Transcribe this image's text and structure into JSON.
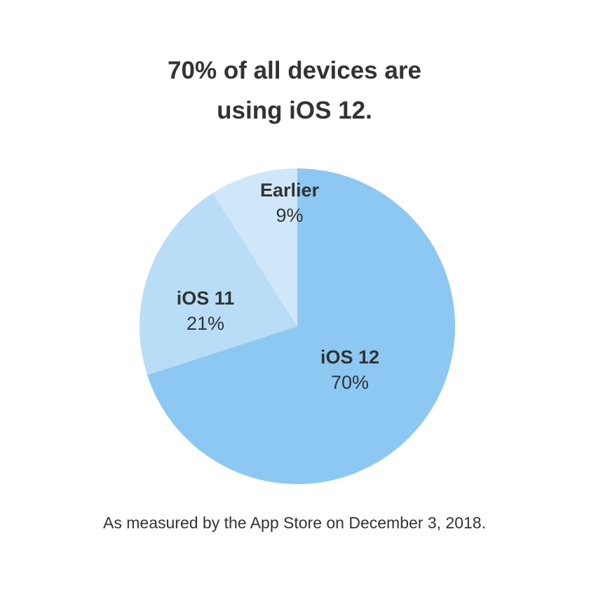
{
  "title": {
    "line1": "70% of all devices are",
    "line2": "using iOS 12."
  },
  "footnote": "As measured by the App Store on December 3, 2018.",
  "slices": [
    {
      "name": "iOS 12",
      "label": "70%",
      "color": "#8DC8F2"
    },
    {
      "name": "iOS 11",
      "label": "21%",
      "color": "#B9DDF6"
    },
    {
      "name": "Earlier",
      "label": "9%",
      "color": "#CFE7F9"
    }
  ],
  "chart_data": {
    "type": "pie",
    "title": "70% of all devices are using iOS 12.",
    "categories": [
      "iOS 12",
      "iOS 11",
      "Earlier"
    ],
    "values": [
      70,
      21,
      9
    ],
    "colors": [
      "#8DC8F2",
      "#B9DDF6",
      "#CFE7F9"
    ],
    "annotations": [
      "As measured by the App Store on December 3, 2018."
    ],
    "legend": "none (inline labels)"
  }
}
